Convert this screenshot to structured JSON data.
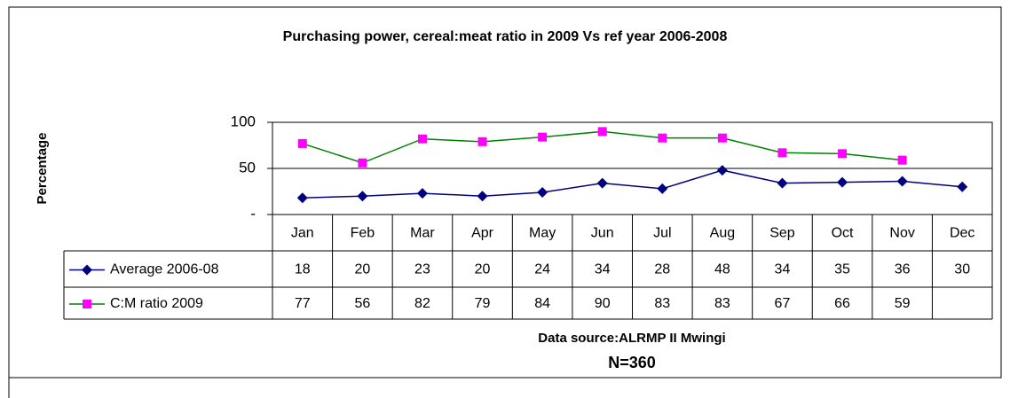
{
  "chart_data": {
    "type": "line",
    "title": "Purchasing power, cereal:meat ratio in 2009 Vs ref year 2006-2008",
    "y_label": "Percentage",
    "categories": [
      "Jan",
      "Feb",
      "Mar",
      "Apr",
      "May",
      "Jun",
      "Jul",
      "Aug",
      "Sep",
      "Oct",
      "Nov",
      "Dec"
    ],
    "series": [
      {
        "name": "Average 2006-08",
        "color": "#000080",
        "marker": "diamond",
        "values": [
          18,
          20,
          23,
          20,
          24,
          34,
          28,
          48,
          34,
          35,
          36,
          30
        ]
      },
      {
        "name": "C:M ratio 2009",
        "color": "#008000",
        "marker_color": "#ff00ff",
        "marker": "square",
        "values": [
          77,
          56,
          82,
          79,
          84,
          90,
          83,
          83,
          67,
          66,
          59,
          null
        ]
      }
    ],
    "ylim": [
      0,
      100
    ],
    "yticks": [
      {
        "value": 0,
        "label": "-"
      },
      50,
      100
    ],
    "grid": true,
    "annotations": [
      "Data source:ALRMP II Mwingi",
      "N=360"
    ]
  }
}
